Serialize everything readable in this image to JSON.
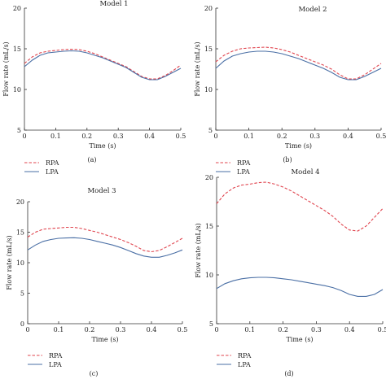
{
  "panels": [
    {
      "caption": "(a)",
      "chart_data": {
        "type": "line",
        "title": "Model 1",
        "xlabel": "Time (s)",
        "ylabel": "Flow rate (mL/s)",
        "xlim": [
          0,
          0.5
        ],
        "ylim": [
          5,
          20
        ],
        "xticks": [
          "0",
          "0.1",
          "0.2",
          "0.3",
          "0.4",
          "0.5"
        ],
        "yticks": [
          "5",
          "10",
          "15",
          "20"
        ],
        "grid": false,
        "legend_position": "bottom-left",
        "x": [
          0,
          0.025,
          0.05,
          0.075,
          0.1,
          0.125,
          0.15,
          0.175,
          0.2,
          0.225,
          0.25,
          0.275,
          0.3,
          0.325,
          0.35,
          0.375,
          0.4,
          0.425,
          0.45,
          0.475,
          0.5
        ],
        "series": [
          {
            "name": "RPA",
            "color": "#e0444e",
            "dash": true,
            "values": [
              13.2,
              14.0,
              14.5,
              14.7,
              14.8,
              14.9,
              14.95,
              14.9,
              14.7,
              14.4,
              14.0,
              13.6,
              13.2,
              12.8,
              12.2,
              11.6,
              11.3,
              11.3,
              11.7,
              12.3,
              13.0
            ]
          },
          {
            "name": "LPA",
            "color": "#4a6fa5",
            "dash": false,
            "values": [
              12.8,
              13.6,
              14.2,
              14.5,
              14.6,
              14.7,
              14.75,
              14.7,
              14.5,
              14.2,
              13.9,
              13.5,
              13.1,
              12.7,
              12.1,
              11.5,
              11.2,
              11.2,
              11.6,
              12.1,
              12.6
            ]
          }
        ]
      }
    },
    {
      "caption": "(b)",
      "chart_data": {
        "type": "line",
        "title": "Model 2",
        "xlabel": "Time (s)",
        "ylabel": "Flow rate (mL/s)",
        "xlim": [
          0,
          0.5
        ],
        "ylim": [
          5,
          20
        ],
        "xticks": [
          "0",
          "0.1",
          "0.2",
          "0.3",
          "0.4",
          "0.5"
        ],
        "yticks": [
          "5",
          "10",
          "15",
          "20"
        ],
        "grid": false,
        "legend_position": "bottom-left",
        "x": [
          0,
          0.025,
          0.05,
          0.075,
          0.1,
          0.125,
          0.15,
          0.175,
          0.2,
          0.225,
          0.25,
          0.275,
          0.3,
          0.325,
          0.35,
          0.375,
          0.4,
          0.425,
          0.45,
          0.475,
          0.5
        ],
        "series": [
          {
            "name": "RPA",
            "color": "#e0444e",
            "dash": true,
            "values": [
              13.4,
              14.2,
              14.7,
              15.0,
              15.1,
              15.15,
              15.2,
              15.1,
              14.9,
              14.6,
              14.2,
              13.8,
              13.4,
              13.0,
              12.5,
              11.8,
              11.3,
              11.3,
              11.8,
              12.5,
              13.2
            ]
          },
          {
            "name": "LPA",
            "color": "#4a6fa5",
            "dash": false,
            "values": [
              12.6,
              13.5,
              14.1,
              14.4,
              14.6,
              14.7,
              14.7,
              14.6,
              14.4,
              14.1,
              13.8,
              13.4,
              13.0,
              12.6,
              12.1,
              11.5,
              11.2,
              11.2,
              11.6,
              12.1,
              12.6
            ]
          }
        ]
      }
    },
    {
      "caption": "(c)",
      "chart_data": {
        "type": "line",
        "title": "Model 3",
        "xlabel": "Time (s)",
        "ylabel": "Flow rate (mL/s)",
        "xlim": [
          0,
          0.5
        ],
        "ylim": [
          0,
          20
        ],
        "xticks": [
          "0",
          "0.1",
          "0.2",
          "0.3",
          "0.4",
          "0.5"
        ],
        "yticks": [
          "0",
          "5",
          "10",
          "15",
          "20"
        ],
        "grid": false,
        "legend_position": "bottom-left",
        "x": [
          0,
          0.025,
          0.05,
          0.075,
          0.1,
          0.125,
          0.15,
          0.175,
          0.2,
          0.225,
          0.25,
          0.275,
          0.3,
          0.325,
          0.35,
          0.375,
          0.4,
          0.425,
          0.45,
          0.475,
          0.5
        ],
        "series": [
          {
            "name": "RPA",
            "color": "#e0444e",
            "dash": true,
            "values": [
              14.2,
              15.0,
              15.5,
              15.6,
              15.7,
              15.8,
              15.8,
              15.6,
              15.3,
              15.0,
              14.6,
              14.2,
              13.8,
              13.3,
              12.7,
              12.0,
              11.8,
              12.0,
              12.6,
              13.3,
              14.0
            ]
          },
          {
            "name": "LPA",
            "color": "#4a6fa5",
            "dash": false,
            "values": [
              12.1,
              12.9,
              13.5,
              13.8,
              14.0,
              14.05,
              14.1,
              14.0,
              13.8,
              13.5,
              13.2,
              12.9,
              12.5,
              12.0,
              11.5,
              11.1,
              10.9,
              10.9,
              11.2,
              11.6,
              12.1
            ]
          }
        ]
      }
    },
    {
      "caption": "(d)",
      "chart_data": {
        "type": "line",
        "title": "Model 4",
        "xlabel": "Time (s)",
        "ylabel": "Flow rate (mL/s)",
        "xlim": [
          0,
          0.5
        ],
        "ylim": [
          5,
          20
        ],
        "xticks": [
          "0",
          "0.1",
          "0.2",
          "0.3",
          "0.4",
          "0.5"
        ],
        "yticks": [
          "5",
          "10",
          "15",
          "20"
        ],
        "grid": false,
        "legend_position": "bottom-left",
        "x": [
          0,
          0.025,
          0.05,
          0.075,
          0.1,
          0.125,
          0.15,
          0.175,
          0.2,
          0.225,
          0.25,
          0.275,
          0.3,
          0.325,
          0.35,
          0.375,
          0.4,
          0.425,
          0.45,
          0.475,
          0.5
        ],
        "series": [
          {
            "name": "RPA",
            "color": "#e0444e",
            "dash": true,
            "values": [
              17.3,
              18.3,
              18.9,
              19.2,
              19.3,
              19.45,
              19.5,
              19.3,
              19.0,
              18.6,
              18.1,
              17.6,
              17.1,
              16.6,
              16.0,
              15.2,
              14.6,
              14.5,
              15.0,
              15.9,
              16.8
            ]
          },
          {
            "name": "LPA",
            "color": "#4a6fa5",
            "dash": false,
            "values": [
              8.6,
              9.1,
              9.4,
              9.6,
              9.7,
              9.75,
              9.75,
              9.7,
              9.6,
              9.5,
              9.35,
              9.2,
              9.05,
              8.9,
              8.7,
              8.4,
              8.0,
              7.8,
              7.8,
              8.0,
              8.5
            ]
          }
        ]
      }
    }
  ]
}
